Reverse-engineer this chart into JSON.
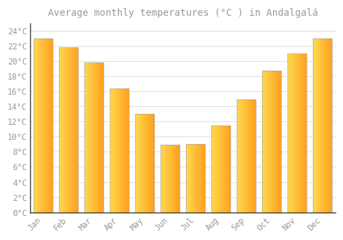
{
  "title": "Average monthly temperatures (°C ) in Andalgalá",
  "months": [
    "Jan",
    "Feb",
    "Mar",
    "Apr",
    "May",
    "Jun",
    "Jul",
    "Aug",
    "Sep",
    "Oct",
    "Nov",
    "Dec"
  ],
  "values": [
    23.0,
    21.8,
    19.8,
    16.4,
    13.0,
    8.9,
    9.0,
    11.5,
    14.9,
    18.7,
    21.0,
    23.0
  ],
  "bar_color_left": "#FFD84D",
  "bar_color_right": "#FFA020",
  "bar_border_color": "#AAAAAA",
  "background_color": "#ffffff",
  "grid_color": "#dddddd",
  "ylim": [
    0,
    25
  ],
  "ytick_step": 2,
  "title_fontsize": 10,
  "tick_fontsize": 8.5,
  "font_color": "#999999",
  "font_family": "monospace",
  "bar_width": 0.75,
  "left_spine_color": "#333333"
}
